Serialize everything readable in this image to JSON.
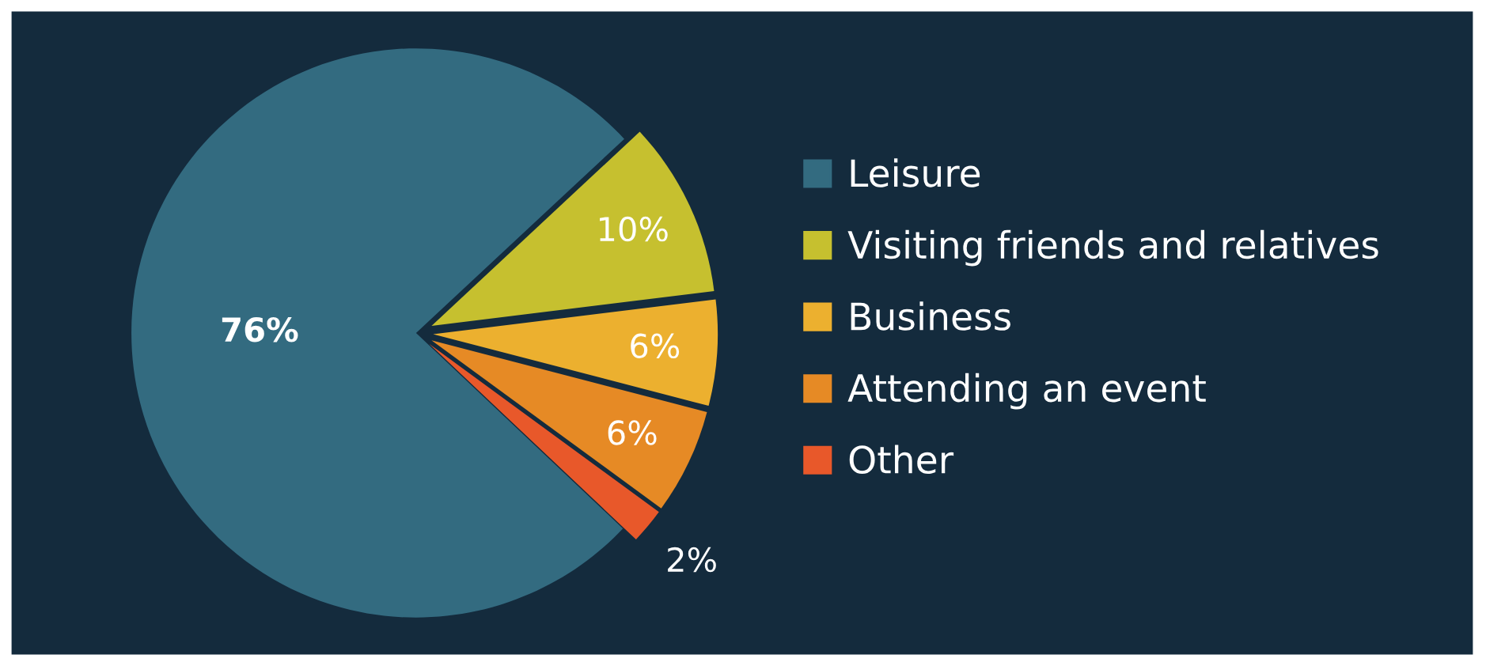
{
  "chart_data": {
    "type": "pie",
    "categories": [
      "Leisure",
      "Visiting friends and relatives",
      "Business",
      "Attending an event",
      "Other"
    ],
    "values": [
      76,
      10,
      6,
      6,
      2
    ],
    "value_labels": [
      "76%",
      "10%",
      "6%",
      "6%",
      "2%"
    ],
    "colors": [
      "#336b80",
      "#c6c02f",
      "#ecb02f",
      "#e68a25",
      "#e8582a"
    ],
    "legend": "right"
  }
}
